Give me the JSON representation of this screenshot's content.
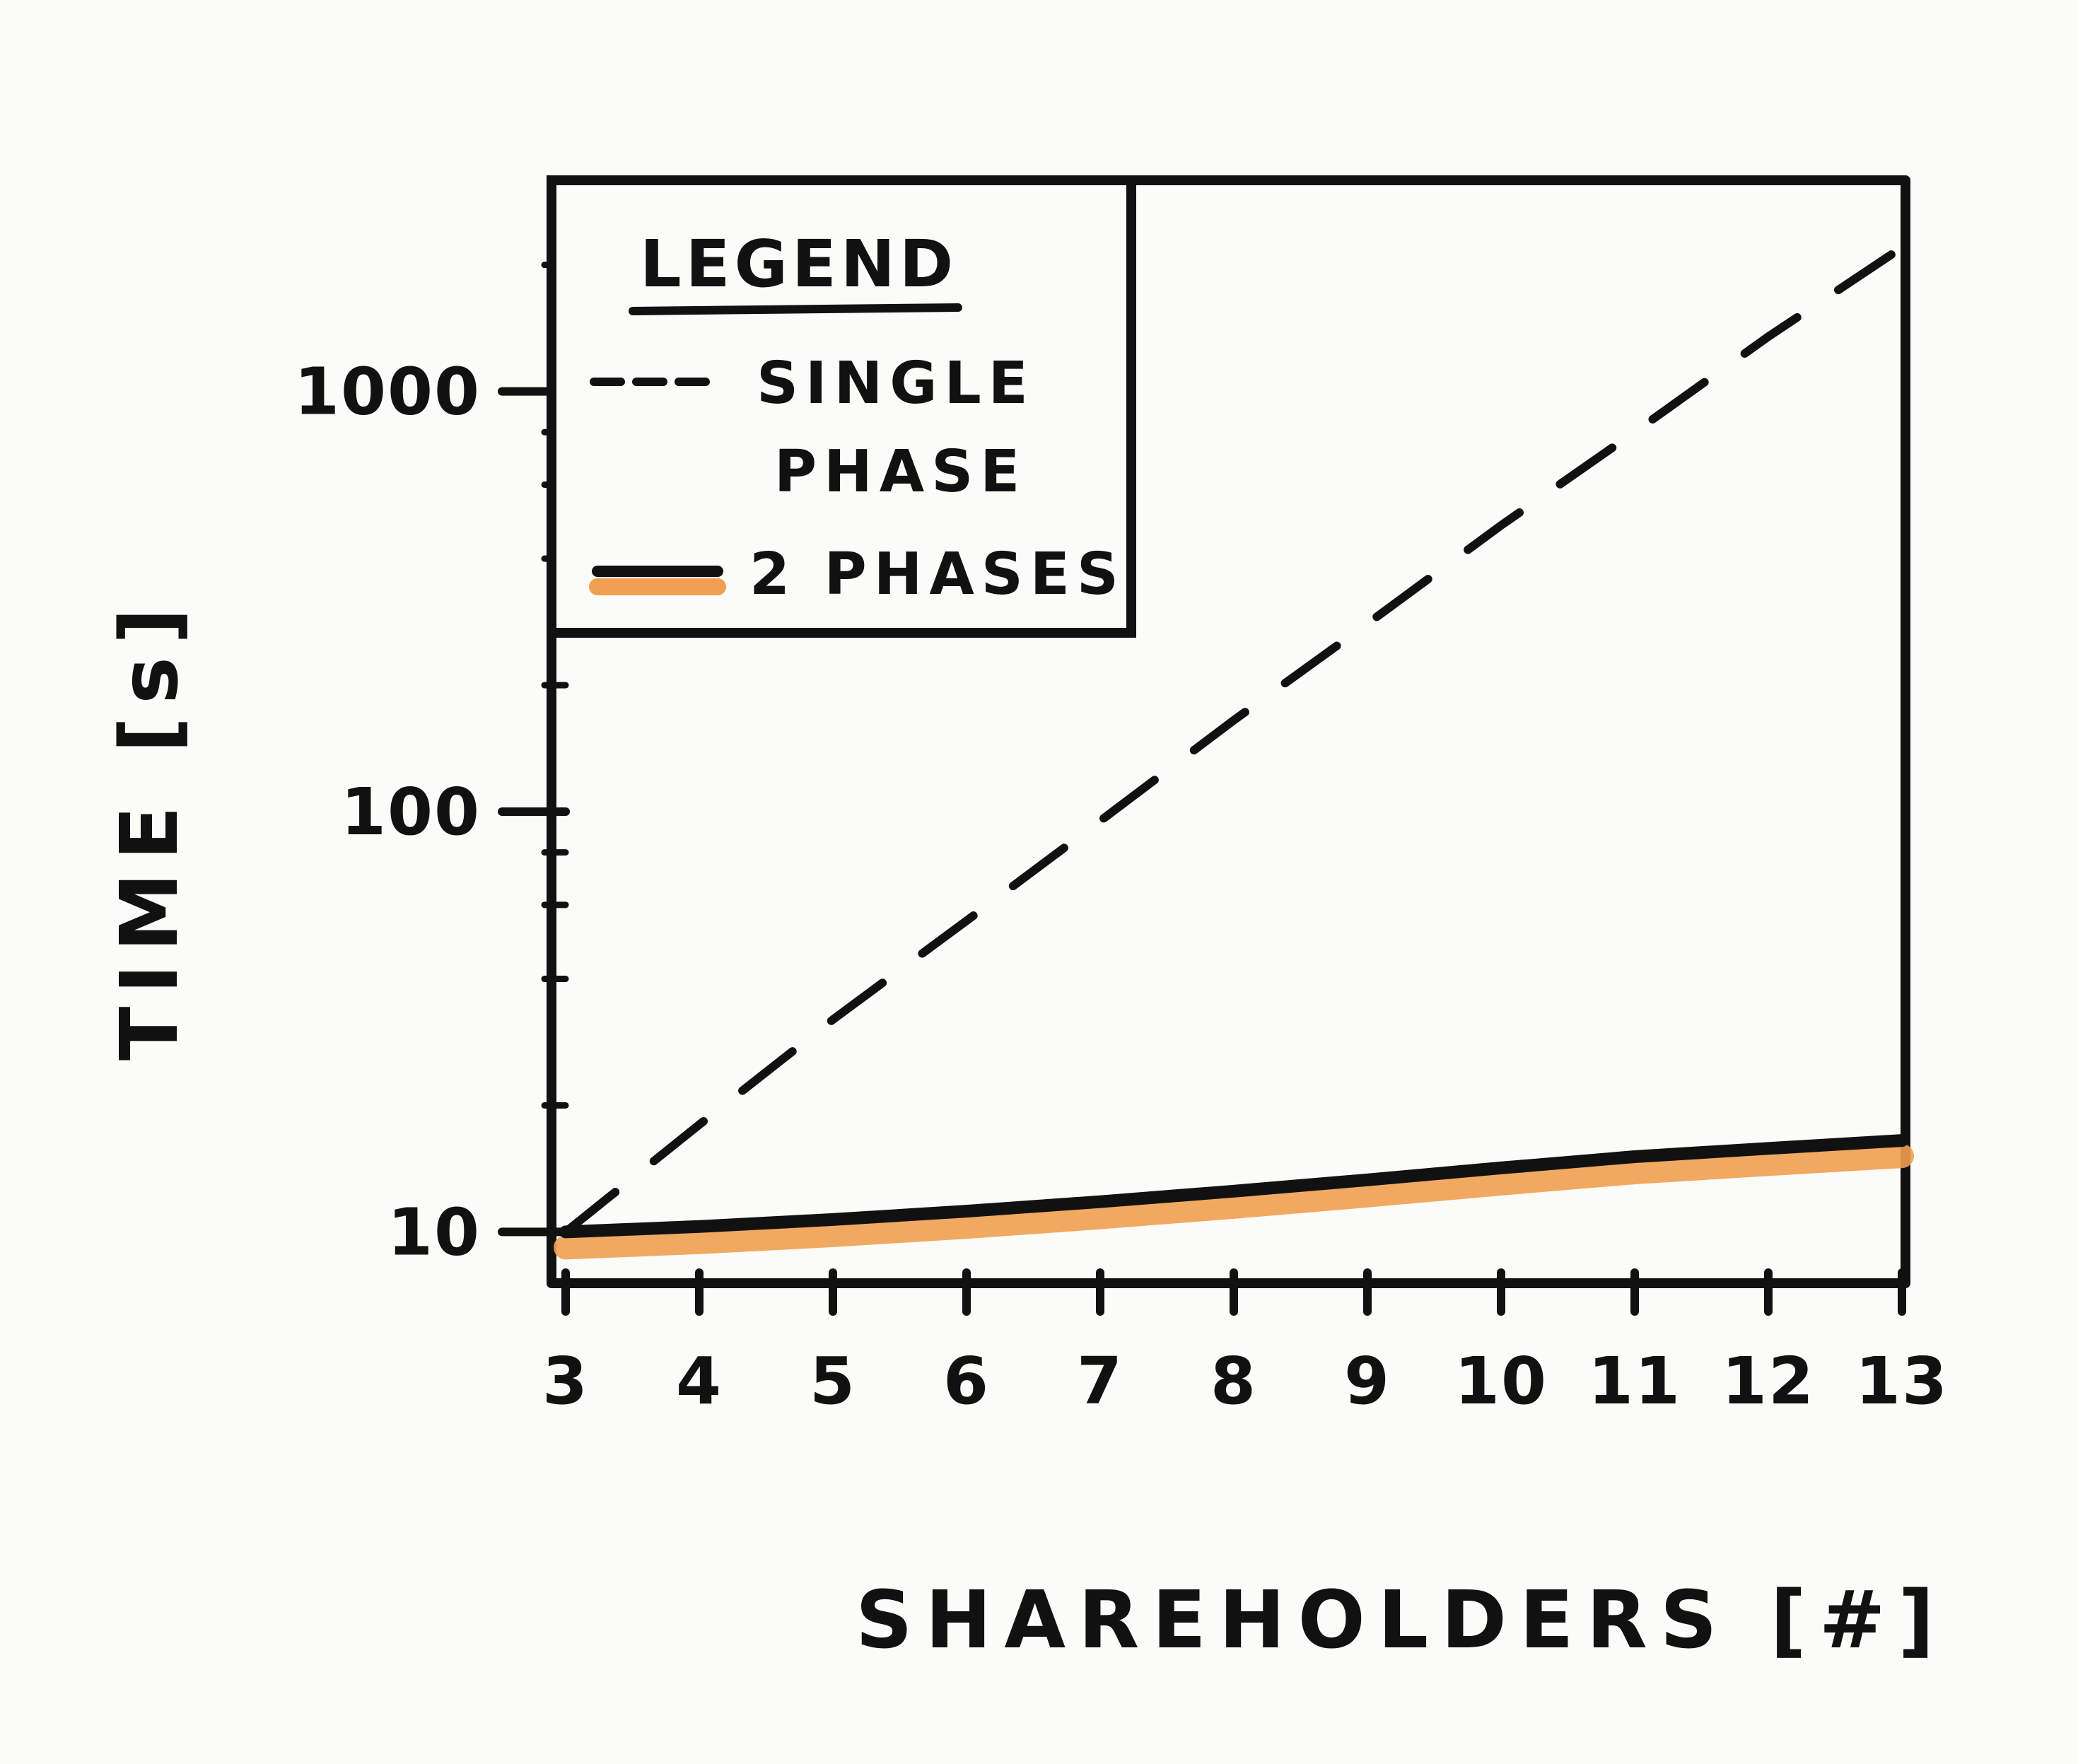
{
  "chart_data": {
    "type": "line",
    "xlabel": "SHAREHOLDERS [#]",
    "ylabel": "TIME [s]",
    "x": [
      3,
      4,
      5,
      6,
      7,
      8,
      9,
      10,
      11,
      12,
      13
    ],
    "x_tick_labels": [
      "3",
      "4",
      "5",
      "6",
      "7",
      "8",
      "9",
      "10",
      "11",
      "12",
      "13"
    ],
    "xlim": [
      3,
      13
    ],
    "y_scale": "log",
    "ylim": [
      8,
      3000
    ],
    "y_tick_labels": [
      "10",
      "100",
      "1000"
    ],
    "y_ticks": [
      10,
      100,
      1000
    ],
    "grid": false,
    "legend": {
      "title": "LEGEND",
      "position": "top-left",
      "entries": [
        {
          "label_line1": "SINGLE",
          "label_line2": "PHASE"
        },
        {
          "label_line1": "2 PHASES",
          "label_line2": ""
        }
      ]
    },
    "series": [
      {
        "name": "SINGLE PHASE",
        "style": "dashed",
        "color": "#111111",
        "values": [
          10,
          18,
          32,
          55,
          95,
          165,
          280,
          480,
          800,
          1350,
          2200
        ]
      },
      {
        "name": "2 PHASES",
        "style": "solid-thick",
        "color": "#111111",
        "fill_color": "#f0a050",
        "values": [
          10,
          10.3,
          10.7,
          11.2,
          11.8,
          12.5,
          13.3,
          14.2,
          15.1,
          15.8,
          16.5
        ]
      }
    ]
  }
}
